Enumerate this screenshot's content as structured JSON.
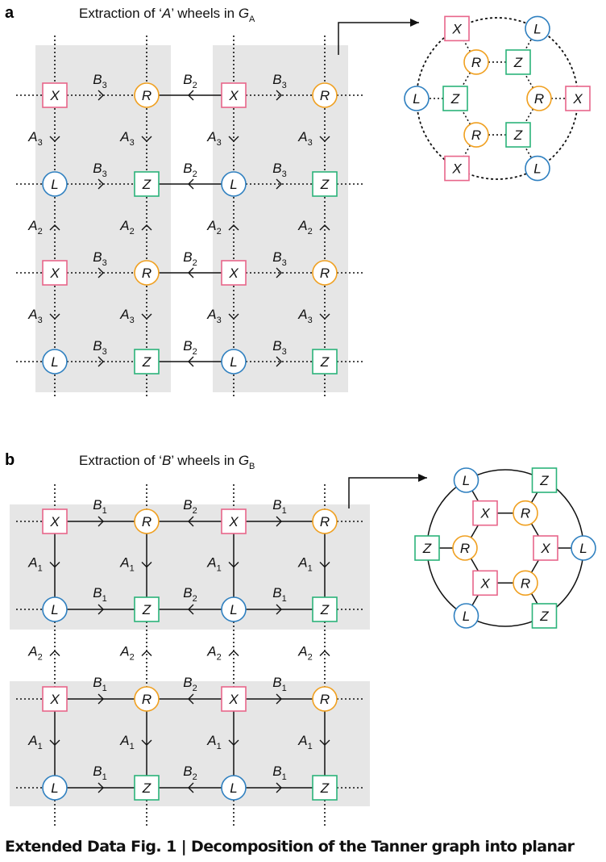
{
  "panel_a": {
    "letter": "a",
    "title_main": "Extraction of ‘",
    "title_var": "A",
    "title_mid": "’ wheels in ",
    "title_graph": "G",
    "title_sub": "A"
  },
  "panel_b": {
    "letter": "b",
    "title_main": "Extraction of ‘",
    "title_var": "B",
    "title_mid": "’ wheels in ",
    "title_graph": "G",
    "title_sub": "B"
  },
  "node_labels": {
    "X": "X",
    "R": "R",
    "L": "L",
    "Z": "Z"
  },
  "edge_labels": {
    "A": "A",
    "B": "B",
    "sub1": "1",
    "sub2": "2",
    "sub3": "3"
  },
  "colors": {
    "X": "#e8668a",
    "Z": "#2bb37a",
    "R": "#f0a020",
    "L": "#2f80c0",
    "panel_bg": "#e6e6e6",
    "line": "#111111"
  },
  "caption": "Extended Data Fig. 1 | Decomposition of the Tanner graph into planar"
}
